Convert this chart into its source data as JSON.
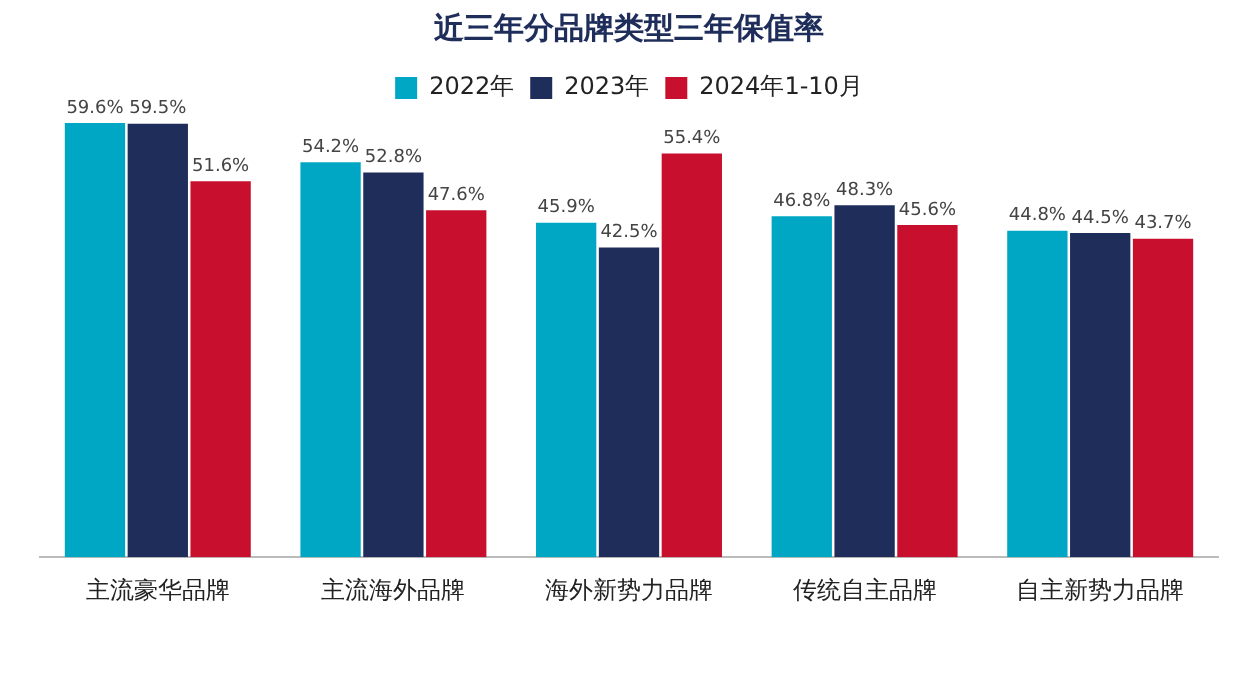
{
  "chart_data": {
    "type": "bar",
    "title": "近三年分品牌类型三年保值率",
    "categories": [
      "主流豪华品牌",
      "主流海外品牌",
      "海外新势力品牌",
      "传统自主品牌",
      "自主新势力品牌"
    ],
    "series": [
      {
        "name": "2022年",
        "color": "#00a7c4",
        "values": [
          59.6,
          54.2,
          45.9,
          46.8,
          44.8
        ],
        "value_labels": [
          "59.6%",
          "54.2%",
          "45.9%",
          "46.8%",
          "44.8%"
        ]
      },
      {
        "name": "2023年",
        "color": "#1f2d5a",
        "values": [
          59.5,
          52.8,
          42.5,
          48.3,
          44.5
        ],
        "value_labels": [
          "59.5%",
          "52.8%",
          "42.5%",
          "48.3%",
          "44.5%"
        ]
      },
      {
        "name": "2024年1-10月",
        "color": "#c8102e",
        "values": [
          51.6,
          47.6,
          55.4,
          45.6,
          43.7
        ],
        "value_labels": [
          "51.6%",
          "47.6%",
          "55.4%",
          "45.6%",
          "43.7%"
        ]
      }
    ],
    "legend": "top",
    "grid": false
  }
}
